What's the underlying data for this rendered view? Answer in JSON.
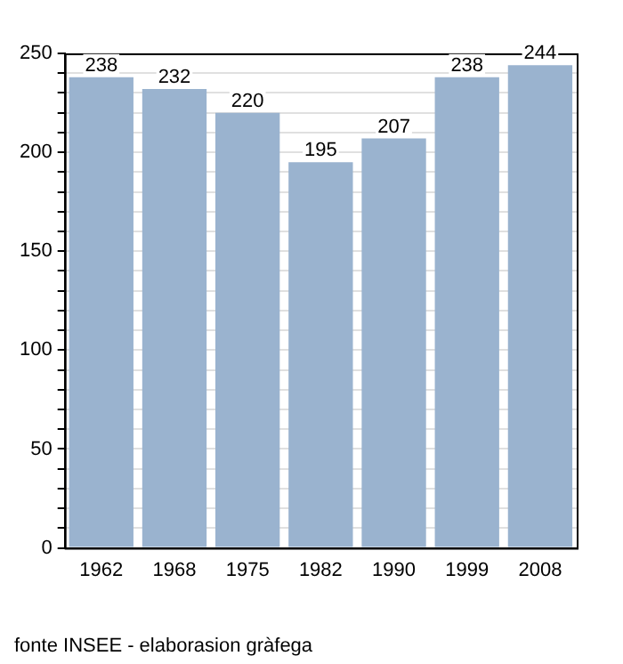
{
  "chart_data": {
    "type": "bar",
    "categories": [
      "1962",
      "1968",
      "1975",
      "1982",
      "1990",
      "1999",
      "2008"
    ],
    "values": [
      238,
      232,
      220,
      195,
      207,
      238,
      244
    ],
    "color": "#9ab3cf",
    "ylim": [
      0,
      250
    ],
    "yticks": [
      0,
      {
        "value": 10,
        "label": null
      },
      {
        "value": 20,
        "label": null
      },
      {
        "value": 30,
        "label": null
      },
      {
        "value": 40,
        "label": null
      },
      50,
      {
        "value": 60,
        "label": null
      },
      {
        "value": 70,
        "label": null
      },
      {
        "value": 80,
        "label": null
      },
      {
        "value": 90,
        "label": null
      },
      100,
      {
        "value": 110,
        "label": null
      },
      {
        "value": 120,
        "label": null
      },
      {
        "value": 130,
        "label": null
      },
      {
        "value": 140,
        "label": null
      },
      150,
      {
        "value": 160,
        "label": null
      },
      {
        "value": 170,
        "label": null
      },
      {
        "value": 180,
        "label": null
      },
      {
        "value": 190,
        "label": null
      },
      200,
      {
        "value": 210,
        "label": null
      },
      {
        "value": 220,
        "label": null
      },
      {
        "value": 230,
        "label": null
      },
      {
        "value": 240,
        "label": null
      },
      250
    ],
    "grid": "y",
    "data_labels": true,
    "annotations": [
      "fonte INSEE - elaborasion gràfega"
    ]
  }
}
